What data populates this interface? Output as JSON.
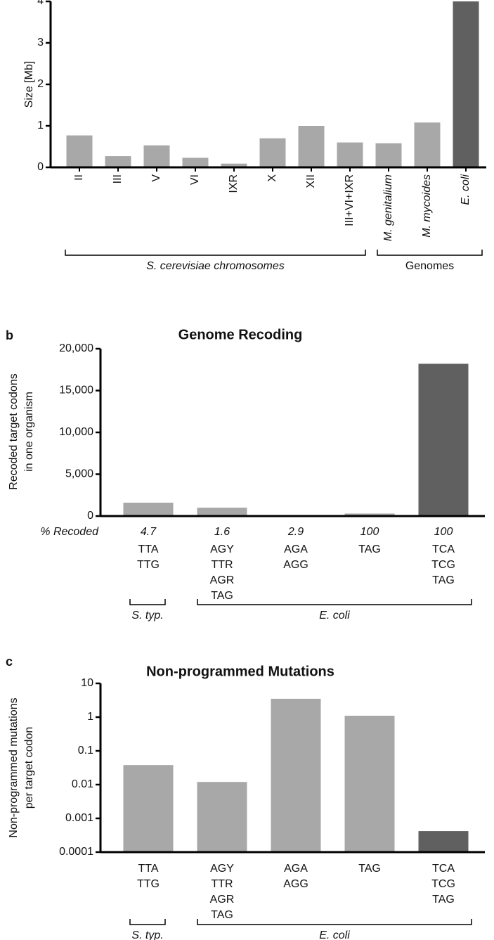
{
  "chart_data": [
    {
      "type": "bar",
      "y_label": "Size [Mb]",
      "categories": [
        "II",
        "III",
        "V",
        "VI",
        "IXR",
        "X",
        "XII",
        "III+VI+IXR",
        "M. genitalium",
        "M. mycoides",
        "E. coli"
      ],
      "values": [
        0.77,
        0.27,
        0.53,
        0.23,
        0.09,
        0.7,
        1.0,
        0.6,
        0.58,
        1.08,
        4.0
      ],
      "colors": [
        "#a8a8a8",
        "#a8a8a8",
        "#a8a8a8",
        "#a8a8a8",
        "#a8a8a8",
        "#a8a8a8",
        "#a8a8a8",
        "#a8a8a8",
        "#a8a8a8",
        "#a8a8a8",
        "#606060"
      ],
      "ylim": [
        0,
        4
      ],
      "yticks": [
        0,
        1,
        2,
        3,
        4
      ],
      "group_labels": [
        "S. cerevisiae chromosomes",
        "Genomes"
      ]
    },
    {
      "type": "bar",
      "panel": "b",
      "title": "Genome Recoding",
      "y_label": [
        "Recoded target codons",
        "in one organism"
      ],
      "row_label": "% Recoded",
      "percent_recoded": [
        4.7,
        1.6,
        2.9,
        100,
        100
      ],
      "categories": [
        [
          "TTA",
          "TTG"
        ],
        [
          "AGY",
          "TTR",
          "AGR",
          "TAG"
        ],
        [
          "AGA",
          "AGG"
        ],
        [
          "TAG"
        ],
        [
          "TCA",
          "TCG",
          "TAG"
        ]
      ],
      "values": [
        1600,
        1000,
        20,
        300,
        18200
      ],
      "colors": [
        "#a8a8a8",
        "#a8a8a8",
        "#a8a8a8",
        "#a8a8a8",
        "#606060"
      ],
      "ylim": [
        0,
        20000
      ],
      "yticks": [
        0,
        {
          "value": 5000,
          "label": "5,000"
        },
        {
          "value": 10000,
          "label": "10,000"
        },
        {
          "value": 15000,
          "label": "15,000"
        },
        {
          "value": 20000,
          "label": "20,000"
        }
      ],
      "group_labels": [
        "S. typ.",
        "E. coli"
      ]
    },
    {
      "type": "bar",
      "panel": "c",
      "title": "Non-programmed Mutations",
      "y_label": [
        "Non-programmed mutations",
        "per target codon"
      ],
      "log_scale": true,
      "categories": [
        [
          "TTA",
          "TTG"
        ],
        [
          "AGY",
          "TTR",
          "AGR",
          "TAG"
        ],
        [
          "AGA",
          "AGG"
        ],
        [
          "TAG"
        ],
        [
          "TCA",
          "TCG",
          "TAG"
        ]
      ],
      "values": [
        0.038,
        0.012,
        3.5,
        1.1,
        0.00042
      ],
      "colors": [
        "#a8a8a8",
        "#a8a8a8",
        "#a8a8a8",
        "#a8a8a8",
        "#606060"
      ],
      "ylim": [
        0.0001,
        10
      ],
      "yticks": [
        0.0001,
        0.001,
        0.01,
        0.1,
        1,
        10
      ],
      "group_labels": [
        "S. typ.",
        "E. coli"
      ]
    }
  ]
}
